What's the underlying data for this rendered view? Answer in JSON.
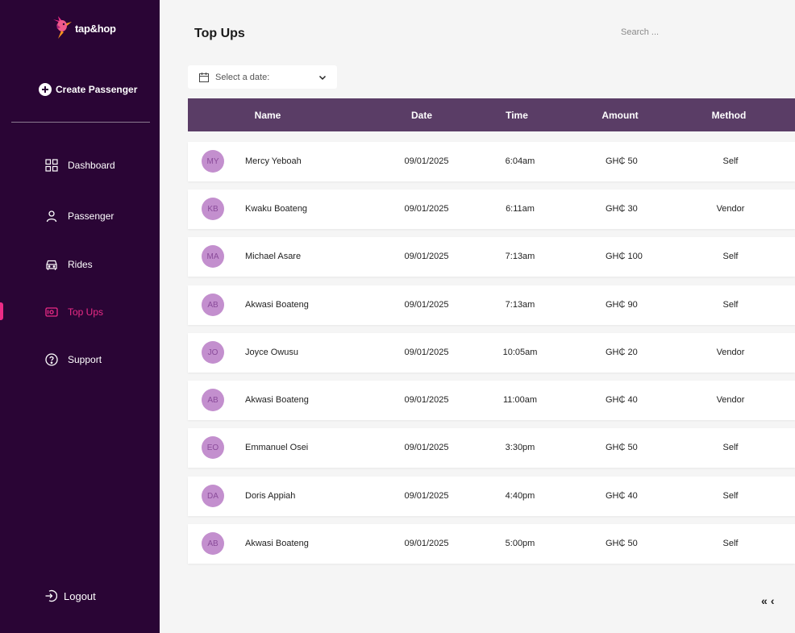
{
  "brand": {
    "name": "tap&hop"
  },
  "sidebar": {
    "create_label": "Create Passenger",
    "items": [
      {
        "label": "Dashboard",
        "icon": "grid-icon"
      },
      {
        "label": "Passenger",
        "icon": "user-icon"
      },
      {
        "label": "Rides",
        "icon": "car-icon"
      },
      {
        "label": "Top Ups",
        "icon": "wallet-icon",
        "active": true
      },
      {
        "label": "Support",
        "icon": "help-icon"
      }
    ],
    "logout_label": "Logout"
  },
  "header": {
    "title": "Top Ups",
    "search_placeholder": "Search ..."
  },
  "date_filter": {
    "placeholder": "Select a date:"
  },
  "table": {
    "columns": [
      "Name",
      "Date",
      "Time",
      "Amount",
      "Method"
    ],
    "rows": [
      {
        "initials": "MY",
        "name": "Mercy Yeboah",
        "date": "09/01/2025",
        "time": "6:04am",
        "amount": "GH₵ 50",
        "method": "Self"
      },
      {
        "initials": "KB",
        "name": "Kwaku Boateng",
        "date": "09/01/2025",
        "time": "6:11am",
        "amount": "GH₵ 30",
        "method": "Vendor"
      },
      {
        "initials": "MA",
        "name": "Michael Asare",
        "date": "09/01/2025",
        "time": "7:13am",
        "amount": "GH₵ 100",
        "method": "Self"
      },
      {
        "initials": "AB",
        "name": "Akwasi Boateng",
        "date": "09/01/2025",
        "time": "7:13am",
        "amount": "GH₵ 90",
        "method": "Self"
      },
      {
        "initials": "JO",
        "name": "Joyce Owusu",
        "date": "09/01/2025",
        "time": "10:05am",
        "amount": "GH₵ 20",
        "method": "Vendor"
      },
      {
        "initials": "AB",
        "name": "Akwasi Boateng",
        "date": "09/01/2025",
        "time": "11:00am",
        "amount": "GH₵ 40",
        "method": "Vendor"
      },
      {
        "initials": "EO",
        "name": "Emmanuel Osei",
        "date": "09/01/2025",
        "time": "3:30pm",
        "amount": "GH₵ 50",
        "method": "Self"
      },
      {
        "initials": "DA",
        "name": "Doris Appiah",
        "date": "09/01/2025",
        "time": "4:40pm",
        "amount": "GH₵ 40",
        "method": "Self"
      },
      {
        "initials": "AB",
        "name": "Akwasi Boateng",
        "date": "09/01/2025",
        "time": "5:00pm",
        "amount": "GH₵ 50",
        "method": "Self"
      }
    ]
  },
  "pagination": {
    "first_label": "«",
    "prev_label": "‹"
  },
  "colors": {
    "sidebar_bg": "#2a0535",
    "accent": "#ec2b86",
    "table_header_bg": "#5a3d66",
    "avatar_bg": "#c38fce"
  }
}
